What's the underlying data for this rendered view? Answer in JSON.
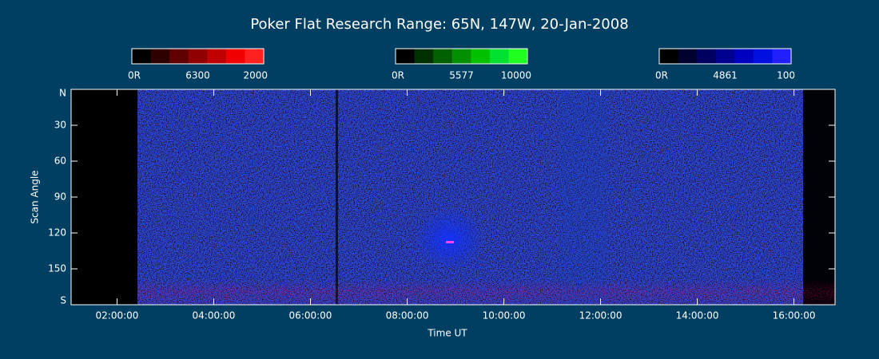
{
  "chart_data": {
    "type": "keogram",
    "title": "Poker Flat Research Range: 65N, 147W, 20-Jan-2008",
    "xlabel": "Time UT",
    "ylabel": "Scan Angle",
    "xlim": [
      1.05,
      16.85
    ],
    "xticks": [
      {
        "value": 2,
        "label": "02:00:00"
      },
      {
        "value": 4,
        "label": "04:00:00"
      },
      {
        "value": 6,
        "label": "06:00:00"
      },
      {
        "value": 8,
        "label": "08:00:00"
      },
      {
        "value": 10,
        "label": "10:00:00"
      },
      {
        "value": 12,
        "label": "12:00:00"
      },
      {
        "value": 14,
        "label": "14:00:00"
      },
      {
        "value": 16,
        "label": "16:00:00"
      }
    ],
    "ylim": [
      0,
      180
    ],
    "yticks": [
      {
        "value": 0,
        "label": "N"
      },
      30,
      60,
      90,
      120,
      150,
      {
        "value": 180,
        "label": "S"
      }
    ],
    "colorbars": [
      {
        "labels": [
          "0R",
          "6300",
          "2000"
        ],
        "colors": [
          "#000000",
          "#300000",
          "#600000",
          "#900000",
          "#c00000",
          "#f00000",
          "#ff2020"
        ]
      },
      {
        "labels": [
          "0R",
          "5577",
          "10000"
        ],
        "colors": [
          "#000000",
          "#003000",
          "#006000",
          "#009000",
          "#00c000",
          "#00e030",
          "#20ff20"
        ]
      },
      {
        "labels": [
          "0R",
          "4861",
          "100"
        ],
        "colors": [
          "#000000",
          "#000030",
          "#000060",
          "#000090",
          "#0000c0",
          "#0010e0",
          "#2020ff"
        ]
      }
    ]
  }
}
